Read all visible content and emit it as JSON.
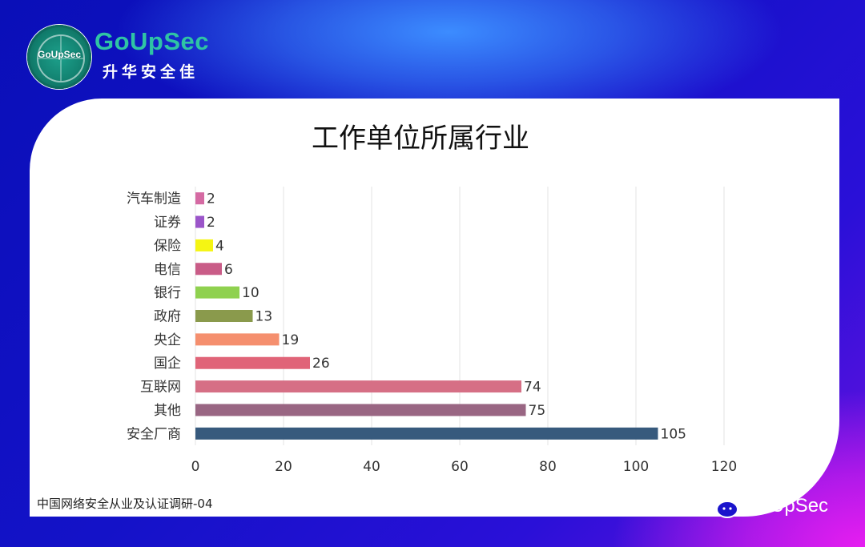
{
  "brand": {
    "badge_text": "GoUpSec",
    "name": "GoUpSec",
    "name_cn": "升华安全佳"
  },
  "watermark": "GoUpSec",
  "footer_note": "中国网络安全从业及认证调研-04",
  "colors": {
    "card": "#ffffff",
    "title": "#111111",
    "brand_green": "#2fc4a4"
  },
  "chart_data": {
    "type": "bar",
    "orientation": "horizontal",
    "title": "工作单位所属行业",
    "xlabel": "",
    "ylabel": "",
    "categories": [
      "汽车制造",
      "证券",
      "保险",
      "电信",
      "银行",
      "政府",
      "央企",
      "国企",
      "互联网",
      "其他",
      "安全厂商"
    ],
    "values": [
      2,
      2,
      4,
      6,
      10,
      13,
      19,
      26,
      74,
      75,
      105
    ],
    "bar_colors": [
      "#d56aa3",
      "#9b55c9",
      "#f5f513",
      "#c95c87",
      "#8fd14f",
      "#8a9a4c",
      "#f58f6e",
      "#e06478",
      "#d66f85",
      "#996683",
      "#375a7d"
    ],
    "xlim": [
      0,
      120
    ],
    "xticks": [
      0,
      20,
      40,
      60,
      80,
      100,
      120
    ],
    "grid": true,
    "data_labels": true,
    "legend": "none"
  }
}
